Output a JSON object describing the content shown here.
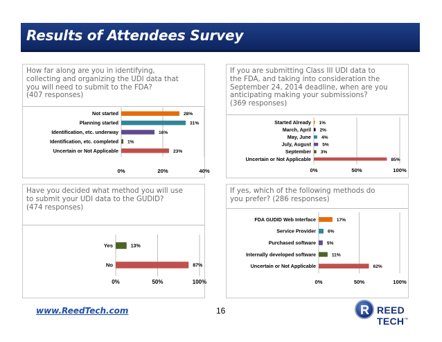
{
  "slide": {
    "title": "Results of Attendees Survey",
    "footer_link": "www.ReedTech.com",
    "page_number": "16",
    "logo_mark": "R",
    "logo_text": "REED TECH",
    "logo_tm": "™"
  },
  "colors": {
    "orange": "#e46c0a",
    "teal": "#31859c",
    "purple": "#5f4b8b",
    "green": "#4f6228",
    "red": "#c0504d",
    "black": "#000000",
    "grid": "#bfbfbf"
  },
  "chart_data": [
    {
      "type": "bar",
      "orientation": "horizontal",
      "question": "How far along are you in identifying,\ncollecting and organizing the UDI data that\nyou will need to submit to the FDA?\n(407 responses)",
      "categories": [
        "Not started",
        "Planning started",
        "Identification, etc. underway",
        "Identification, etc. completed",
        "Uncertain or Not Applicable"
      ],
      "values": [
        28,
        31,
        16,
        1,
        23
      ],
      "value_labels": [
        "28%",
        "31%",
        "16%",
        "1%",
        "23%"
      ],
      "bar_colors": [
        "#e46c0a",
        "#31859c",
        "#5f4b8b",
        "#4f6228",
        "#c0504d"
      ],
      "xlim": [
        0,
        40
      ],
      "xticks": [
        0,
        20,
        40
      ],
      "xtick_labels": [
        "0%",
        "20%",
        "40%"
      ],
      "grid": true
    },
    {
      "type": "bar",
      "orientation": "horizontal",
      "question": "If you are submitting Class III UDI data to\nthe FDA, and taking into consideration the\nSeptember 24, 2014 deadline, when are you\nanticipating making your submissions?\n(369 responses)",
      "categories": [
        "Started Already",
        "March, April",
        "May, June",
        "July, August",
        "September",
        "Uncertain or Not Applicable"
      ],
      "values": [
        1,
        2,
        4,
        5,
        3,
        85
      ],
      "value_labels": [
        "1%",
        "2%",
        "4%",
        "5%",
        "3%",
        "85%"
      ],
      "bar_colors": [
        "#e46c0a",
        "#000000",
        "#31859c",
        "#5f4b8b",
        "#4f6228",
        "#c0504d"
      ],
      "xlim": [
        0,
        100
      ],
      "xticks": [
        0,
        50,
        100
      ],
      "xtick_labels": [
        "0%",
        "50%",
        "100%"
      ],
      "grid": true
    },
    {
      "type": "bar",
      "orientation": "horizontal",
      "question": "Have you decided what method you will use\nto submit your UDI data to the GUDID?\n(474 responses)",
      "categories": [
        "Yes",
        "No"
      ],
      "values": [
        13,
        87
      ],
      "value_labels": [
        "13%",
        "87%"
      ],
      "bar_colors": [
        "#4f6228",
        "#c0504d"
      ],
      "xlim": [
        0,
        100
      ],
      "xticks": [
        0,
        50,
        100
      ],
      "xtick_labels": [
        "0%",
        "50%",
        "100%"
      ],
      "grid": true
    },
    {
      "type": "bar",
      "orientation": "horizontal",
      "question": "If yes, which of the following methods do\nyou prefer? (286 responses)",
      "categories": [
        "FDA GUDID Web Interface",
        "Service Provider",
        "Purchased software",
        "Internally developed software",
        "Uncertain or Not Applicable"
      ],
      "values": [
        17,
        6,
        5,
        11,
        62
      ],
      "value_labels": [
        "17%",
        "6%",
        "5%",
        "11%",
        "62%"
      ],
      "bar_colors": [
        "#e46c0a",
        "#31859c",
        "#5f4b8b",
        "#4f6228",
        "#c0504d"
      ],
      "xlim": [
        0,
        100
      ],
      "xticks": [
        0,
        50,
        100
      ],
      "xtick_labels": [
        "0%",
        "50%",
        "100%"
      ],
      "grid": true
    }
  ]
}
